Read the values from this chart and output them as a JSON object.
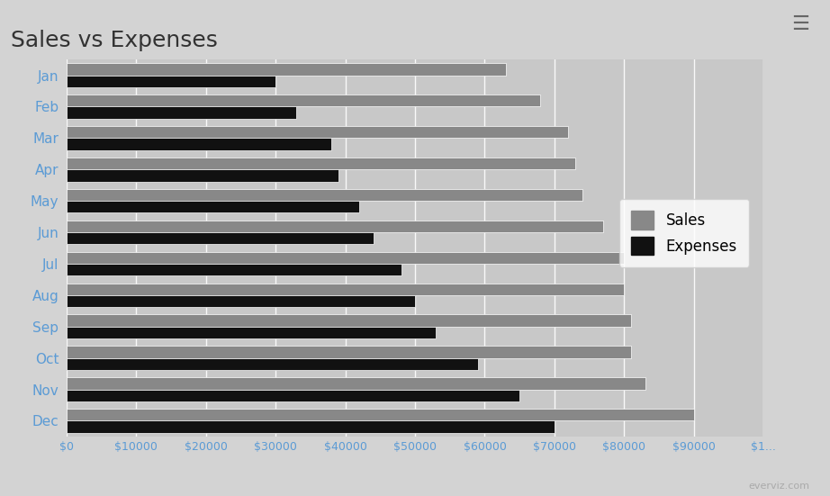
{
  "title": "Sales vs Expenses",
  "months": [
    "Jan",
    "Feb",
    "Mar",
    "Apr",
    "May",
    "Jun",
    "Jul",
    "Aug",
    "Sep",
    "Oct",
    "Nov",
    "Dec"
  ],
  "sales": [
    63000,
    68000,
    72000,
    73000,
    74000,
    77000,
    80000,
    80000,
    81000,
    81000,
    83000,
    90000
  ],
  "expenses": [
    30000,
    33000,
    38000,
    39000,
    42000,
    44000,
    48000,
    50000,
    53000,
    59000,
    65000,
    70000
  ],
  "sales_color": "#888888",
  "expenses_color": "#111111",
  "background_color": "#d3d3d3",
  "plot_bg_color": "#c8c8c8",
  "title_fontsize": 18,
  "axis_label_color": "#5b9bd5",
  "tick_label_color": "#5b9bd5",
  "xlim": [
    0,
    100000
  ],
  "legend_labels": [
    "Sales",
    "Expenses"
  ]
}
